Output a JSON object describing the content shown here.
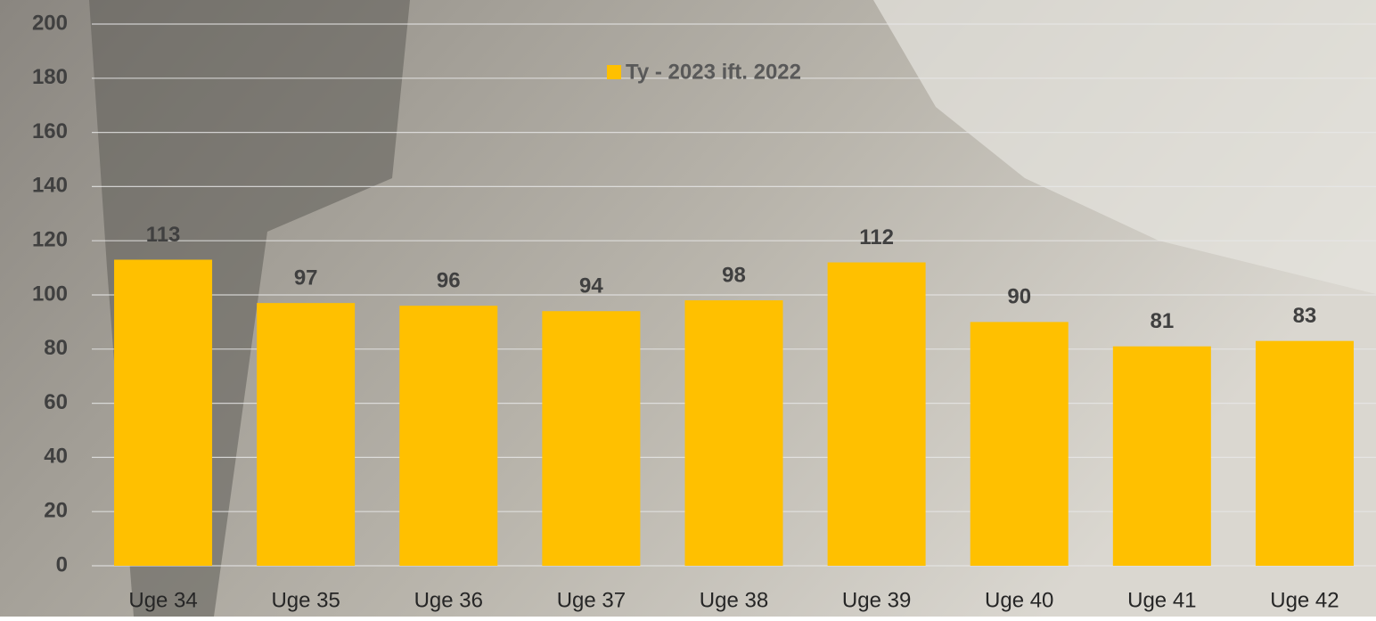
{
  "chart_data": {
    "type": "bar",
    "categories": [
      "Uge 34",
      "Uge 35",
      "Uge 36",
      "Uge 37",
      "Uge 38",
      "Uge 39",
      "Uge 40",
      "Uge 41",
      "Uge 42"
    ],
    "series": [
      {
        "name": "Ty - 2023 ift. 2022",
        "color": "#ffc000",
        "values": [
          113,
          97,
          96,
          94,
          98,
          112,
          90,
          81,
          83
        ]
      }
    ],
    "ylim": [
      0,
      200
    ],
    "yticks": [
      0,
      20,
      40,
      60,
      80,
      100,
      120,
      140,
      160,
      180,
      200
    ],
    "grid": true,
    "legend": "top",
    "data_labels": true
  }
}
